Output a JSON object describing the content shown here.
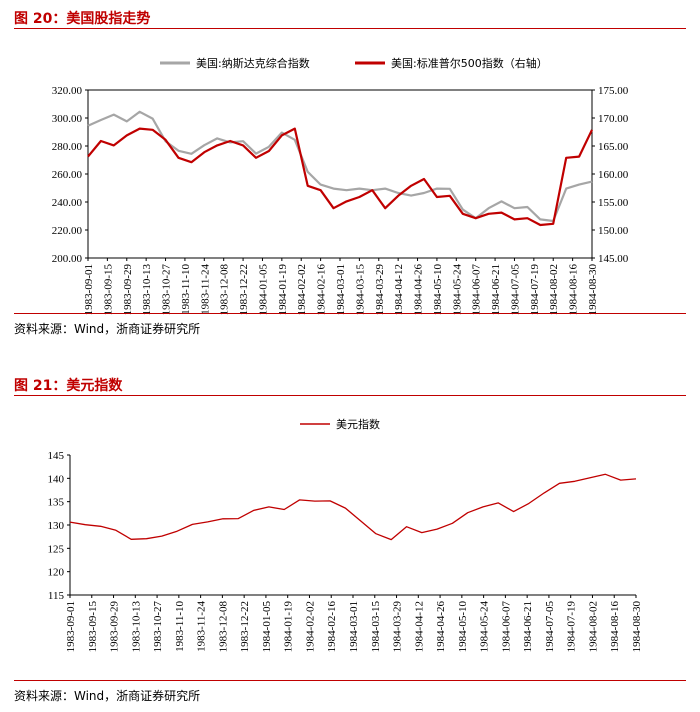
{
  "figure1": {
    "title": "图 20：美国股指走势",
    "source": "资料来源：Wind，浙商证券研究所",
    "chart_data": {
      "type": "line",
      "title": "",
      "x_tick_labels": [
        "1983-09-01",
        "1983-09-15",
        "1983-09-29",
        "1983-10-13",
        "1983-10-27",
        "1983-11-10",
        "1983-11-24",
        "1983-12-08",
        "1983-12-22",
        "1984-01-05",
        "1984-01-19",
        "1984-02-02",
        "1984-02-16",
        "1984-03-01",
        "1984-03-15",
        "1984-03-29",
        "1984-04-12",
        "1984-04-26",
        "1984-05-10",
        "1984-05-24",
        "1984-06-07",
        "1984-06-21",
        "1984-07-05",
        "1984-07-19",
        "1984-08-02",
        "1984-08-16",
        "1984-08-30"
      ],
      "y_left": {
        "ticks": [
          "320.00",
          "300.00",
          "280.00",
          "260.00",
          "240.00",
          "220.00",
          "200.00"
        ],
        "range": [
          200,
          320
        ]
      },
      "y_right": {
        "ticks": [
          "175.00",
          "170.00",
          "165.00",
          "160.00",
          "155.00",
          "150.00",
          "145.00"
        ],
        "range": [
          145,
          175
        ]
      },
      "series": [
        {
          "name": "美国:纳斯达克综合指数",
          "axis": "left",
          "color": "#a6a6a6",
          "values": [
            294,
            299,
            302,
            298,
            304,
            300,
            283,
            277,
            274,
            281,
            285,
            283,
            283,
            275,
            279,
            290,
            284,
            262,
            252,
            250,
            248,
            250,
            248,
            250,
            246,
            245,
            246,
            250,
            249,
            235,
            228,
            236,
            240,
            236,
            236,
            228,
            226,
            250,
            252,
            255
          ]
        },
        {
          "name": "美国:标准普尔500指数（右轴）",
          "axis": "right",
          "color": "#c00000",
          "values": [
            163,
            166,
            165,
            167,
            168,
            168,
            166,
            163,
            162,
            164,
            165,
            166,
            165,
            163,
            164,
            167,
            168,
            158,
            157,
            154,
            155,
            156,
            157,
            154,
            156,
            158,
            159,
            156,
            156,
            153,
            152,
            153,
            153,
            152,
            152,
            151,
            151,
            163,
            163,
            168
          ]
        }
      ]
    }
  },
  "figure2": {
    "title": "图 21：美元指数",
    "source": "资料来源：Wind，浙商证券研究所",
    "chart_data": {
      "type": "line",
      "title": "",
      "x_tick_labels": [
        "1983-09-01",
        "1983-09-15",
        "1983-09-29",
        "1983-10-13",
        "1983-10-27",
        "1983-11-10",
        "1983-11-24",
        "1983-12-08",
        "1983-12-22",
        "1984-01-05",
        "1984-01-19",
        "1984-02-02",
        "1984-02-16",
        "1984-03-01",
        "1984-03-15",
        "1984-03-29",
        "1984-04-12",
        "1984-04-26",
        "1984-05-10",
        "1984-05-24",
        "1984-06-07",
        "1984-06-21",
        "1984-07-05",
        "1984-07-19",
        "1984-08-02",
        "1984-08-16",
        "1984-08-30"
      ],
      "y": {
        "ticks": [
          "145",
          "140",
          "135",
          "130",
          "125",
          "120",
          "115"
        ],
        "range": [
          115,
          145
        ]
      },
      "series": [
        {
          "name": "美元指数",
          "color": "#c00000",
          "values": [
            130.5,
            130.2,
            129.6,
            129.0,
            126.8,
            127.2,
            127.5,
            128.8,
            130.0,
            130.8,
            131.2,
            131.5,
            133.0,
            134.0,
            133.2,
            135.5,
            135.0,
            135.3,
            133.5,
            131.0,
            128.0,
            127.0,
            129.5,
            128.5,
            129.0,
            130.5,
            132.5,
            134.0,
            134.6,
            133.0,
            134.5,
            137.0,
            138.8,
            139.5,
            140.0,
            141.0,
            139.5,
            140.0
          ]
        }
      ]
    }
  }
}
